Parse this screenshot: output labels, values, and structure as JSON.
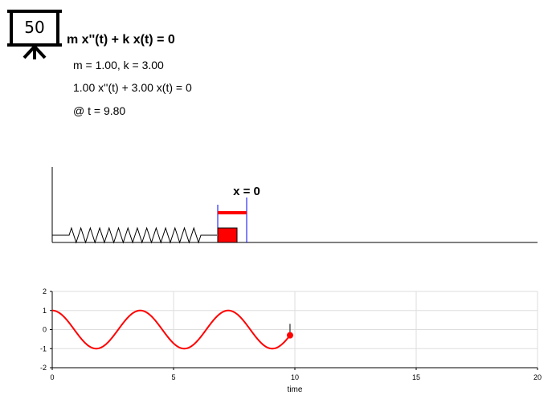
{
  "badge": {
    "value": "50",
    "icon": "presentation-board-icon"
  },
  "equation": {
    "title": "m x''(t) + k x(t) = 0",
    "params": "m = 1.00, k = 3.00",
    "instance": "1.00 x''(t) + 3.00 x(t) = 0",
    "time": "@ t = 9.80"
  },
  "simulation": {
    "marker_label": "x = 0",
    "displacement": -0.3,
    "colors": {
      "mass": "#ff0000",
      "marker": "#0000ff",
      "spring": "#000000"
    }
  },
  "chart_data": {
    "type": "line",
    "xlabel": "time",
    "ylabel": "",
    "xlim": [
      0,
      20
    ],
    "ylim": [
      -2,
      2
    ],
    "xticks": [
      "0",
      "5",
      "10",
      "15",
      "20"
    ],
    "yticks": [
      "2",
      "1",
      "0",
      "-1",
      "-2"
    ],
    "grid": true,
    "series": [
      {
        "color": "#ff0000",
        "function": "cos(sqrt(3) t)",
        "t_start": 0,
        "t_end": 9.8
      }
    ],
    "current_point": {
      "x": 9.8,
      "y": -0.3,
      "color": "#ff0000"
    }
  }
}
